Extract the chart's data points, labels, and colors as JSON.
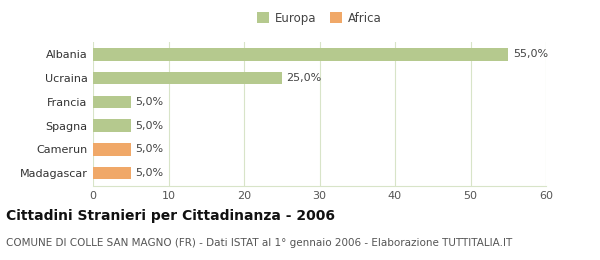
{
  "categories": [
    "Albania",
    "Ucraina",
    "Francia",
    "Spagna",
    "Camerun",
    "Madagascar"
  ],
  "values": [
    55.0,
    25.0,
    5.0,
    5.0,
    5.0,
    5.0
  ],
  "colors": [
    "#b5c98e",
    "#b5c98e",
    "#b5c98e",
    "#b5c98e",
    "#f0a868",
    "#f0a868"
  ],
  "legend": [
    {
      "label": "Europa",
      "color": "#b5c98e"
    },
    {
      "label": "Africa",
      "color": "#f0a868"
    }
  ],
  "xlim": [
    0,
    60
  ],
  "xticks": [
    0,
    10,
    20,
    30,
    40,
    50,
    60
  ],
  "title": "Cittadini Stranieri per Cittadinanza - 2006",
  "subtitle": "COMUNE DI COLLE SAN MAGNO (FR) - Dati ISTAT al 1° gennaio 2006 - Elaborazione TUTTITALIA.IT",
  "bar_labels": [
    "55,0%",
    "25,0%",
    "5,0%",
    "5,0%",
    "5,0%",
    "5,0%"
  ],
  "bg_color": "#ffffff",
  "grid_color": "#d8e4c8",
  "title_fontsize": 10,
  "subtitle_fontsize": 7.5,
  "label_fontsize": 8,
  "tick_fontsize": 8,
  "legend_fontsize": 8.5
}
